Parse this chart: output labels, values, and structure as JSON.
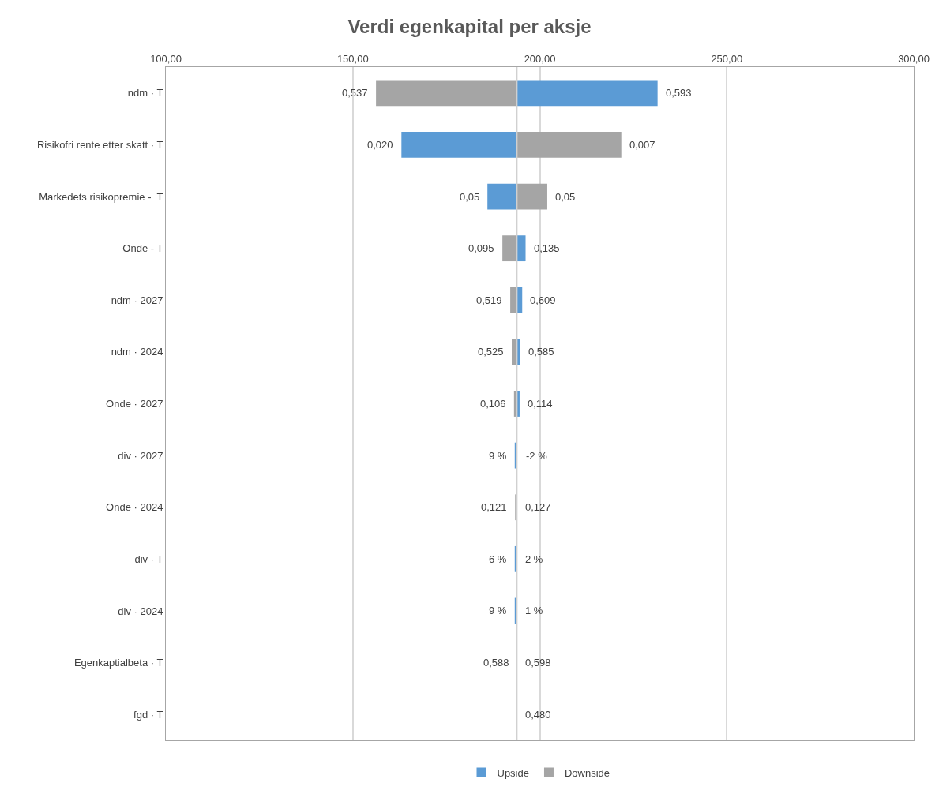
{
  "chart_data": {
    "type": "bar",
    "orientation": "horizontal",
    "title": "Verdi egenkapital per aksje",
    "categories": [
      "ndm · T",
      "Risikofri rente etter skatt · T",
      "Markedets risikopremie -  T",
      "Onde - T",
      "ndm · 2027",
      "ndm · 2024",
      "Onde · 2027",
      "div · 2027",
      "Onde · 2024",
      "div · T",
      "div · 2024",
      "Egenkaptialbeta · T",
      "fgd · T"
    ],
    "series": [
      {
        "name": "Upside",
        "color": "#5b9bd5",
        "base": [
          193.9,
          193.9,
          193.9,
          193.9,
          193.9,
          193.9,
          193.9,
          193.9,
          null,
          193.9,
          193.9,
          null,
          null
        ],
        "values": [
          37.6,
          -30.9,
          -7.9,
          2.3,
          1.4,
          0.9,
          0.7,
          -0.6,
          null,
          -0.6,
          -0.6,
          null,
          null
        ]
      },
      {
        "name": "Downside",
        "color": "#a5a5a5",
        "base": [
          193.9,
          193.9,
          193.9,
          193.9,
          193.9,
          193.9,
          193.9,
          null,
          193.9,
          null,
          null,
          null,
          null
        ],
        "values": [
          -37.7,
          27.9,
          8.1,
          -3.9,
          -1.8,
          -1.4,
          -0.8,
          null,
          -0.5,
          null,
          null,
          null,
          null
        ]
      }
    ],
    "annotations": [
      {
        "text": "0,537",
        "x": 156.2,
        "y": "ndm · T"
      },
      {
        "text": "0,593",
        "x": 231.5,
        "y": "ndm · T"
      },
      {
        "text": "0,020",
        "x": 163.0,
        "y": "Risikofri rente etter skatt · T"
      },
      {
        "text": "0,007",
        "x": 221.8,
        "y": "Risikofri rente etter skatt · T"
      },
      {
        "text": "0,05",
        "x": 186.0,
        "y": "Markedets risikopremie -  T"
      },
      {
        "text": "0,05",
        "x": 202.0,
        "y": "Markedets risikopremie -  T"
      },
      {
        "text": "0,095",
        "x": 190.0,
        "y": "Onde - T"
      },
      {
        "text": "0,135",
        "x": 196.2,
        "y": "Onde - T"
      },
      {
        "text": "0,519",
        "x": 192.1,
        "y": "ndm · 2027"
      },
      {
        "text": "0,609",
        "x": 195.3,
        "y": "ndm · 2027"
      },
      {
        "text": "0,525",
        "x": 192.5,
        "y": "ndm · 2024"
      },
      {
        "text": "0,585",
        "x": 194.8,
        "y": "ndm · 2024"
      },
      {
        "text": "0,106",
        "x": 193.1,
        "y": "Onde · 2027"
      },
      {
        "text": "0,114",
        "x": 194.6,
        "y": "Onde · 2027"
      },
      {
        "text": "9 %",
        "x": 193.3,
        "y": "div · 2027"
      },
      {
        "text": "-2 %",
        "x": 194.1,
        "y": "div · 2027"
      },
      {
        "text": "0,121",
        "x": 193.4,
        "y": "Onde · 2024"
      },
      {
        "text": "0,127",
        "x": 194.0,
        "y": "Onde · 2024"
      },
      {
        "text": "6 %",
        "x": 193.3,
        "y": "div · T"
      },
      {
        "text": "2 %",
        "x": 194.0,
        "y": "div · T"
      },
      {
        "text": "9 %",
        "x": 193.3,
        "y": "div · 2024"
      },
      {
        "text": "1 %",
        "x": 194.0,
        "y": "div · 2024"
      },
      {
        "text": "0,598",
        "x": 193.9,
        "y": "Egenkaptialbeta · T"
      },
      {
        "text": "0,588",
        "x": 193.9,
        "y": "Egenkaptialbeta · T"
      },
      {
        "text": "0,480",
        "x": 193.9,
        "y": "fgd · T"
      }
    ],
    "xlim": [
      100,
      300
    ],
    "xticks": [
      {
        "value": 100,
        "label": "100,00"
      },
      {
        "value": 150,
        "label": "150,00"
      },
      {
        "value": 200,
        "label": "200,00"
      },
      {
        "value": 250,
        "label": "250,00"
      },
      {
        "value": 300,
        "label": "300,00"
      }
    ],
    "ref_lines": [
      {
        "axis": "x",
        "value": 193.9,
        "color": "#d0d0d0"
      }
    ],
    "grid": "x",
    "legend": "bottom"
  }
}
